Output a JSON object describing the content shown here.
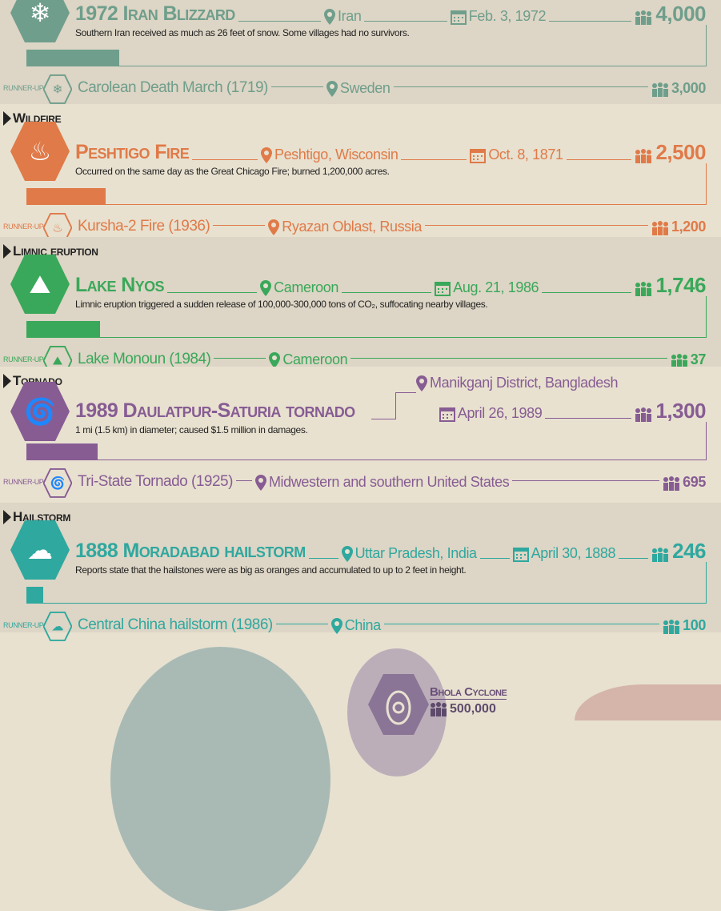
{
  "colors": {
    "blizzard": "#6f9e8c",
    "wildfire": "#e07a48",
    "limnic": "#3aa85a",
    "tornado": "#875c93",
    "hailstorm": "#2fa89f"
  },
  "runner_up_label": "Runner-up",
  "sections": [
    {
      "key": "blizzard",
      "header": "",
      "icon": "blizzard-icon",
      "title": "1972 Iran Blizzard",
      "location": "Iran",
      "date": "Feb. 3, 1972",
      "deaths": "4,000",
      "description": "Southern Iran received as much as 26 feet of snow. Some villages had no survivors.",
      "runner_up": {
        "name": "Carolean Death March (1719)",
        "location": "Sweden",
        "deaths": "3,000"
      }
    },
    {
      "key": "wildfire",
      "header": "Wildfire",
      "icon": "wildfire-icon",
      "title": "Peshtigo Fire",
      "location": "Peshtigo, Wisconsin",
      "date": "Oct. 8, 1871",
      "deaths": "2,500",
      "description": "Occurred on the same day as the Great Chicago Fire; burned 1,200,000 acres.",
      "runner_up": {
        "name": "Kursha-2 Fire (1936)",
        "location": "Ryazan Oblast, Russia",
        "deaths": "1,200"
      }
    },
    {
      "key": "limnic",
      "header": "Limnic eruption",
      "icon": "limnic-eruption-icon",
      "title": "Lake Nyos",
      "location": "Cameroon",
      "date": "Aug. 21, 1986",
      "deaths": "1,746",
      "description": "Limnic eruption triggered a sudden release of 100,000-300,000 tons of CO₂, suffocating nearby villages.",
      "runner_up": {
        "name": "Lake Monoun (1984)",
        "location": "Cameroon",
        "deaths": "37"
      }
    },
    {
      "key": "tornado",
      "header": "Tornado",
      "icon": "tornado-icon",
      "title": "1989 Daulatpur-Saturia tornado",
      "location": "Manikganj District, Bangladesh",
      "date": "April 26, 1989",
      "deaths": "1,300",
      "description": "1 mi (1.5 km) in diameter; caused $1.5 million in damages.",
      "runner_up": {
        "name": "Tri-State Tornado (1925)",
        "location": "Midwestern and southern United States",
        "deaths": "695"
      }
    },
    {
      "key": "hailstorm",
      "header": "Hailstorm",
      "icon": "hailstorm-icon",
      "title": "1888 Moradabad hailstorm",
      "location": "Uttar Pradesh, India",
      "date": "April 30, 1888",
      "deaths": "246",
      "description": "Reports state that the hailstones were as big as oranges and accumulated to up to 2 feet in height.",
      "runner_up": {
        "name": "Central China hailstorm (1986)",
        "location": "China",
        "deaths": "100"
      }
    }
  ],
  "bottom": {
    "cyclone_name": "Bhola Cyclone",
    "cyclone_deaths": "500,000"
  }
}
